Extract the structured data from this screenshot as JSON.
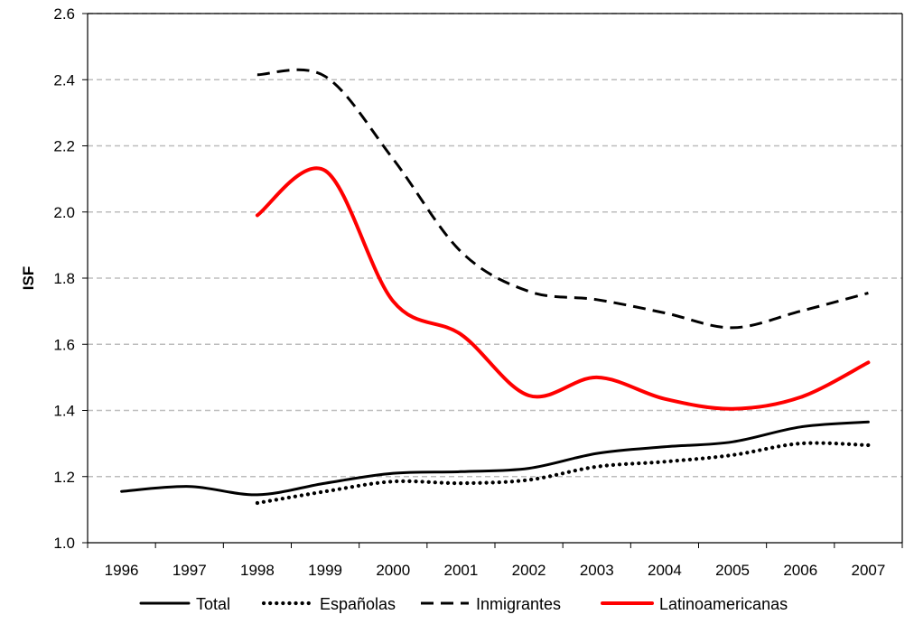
{
  "chart_data": {
    "type": "line",
    "title": "",
    "xlabel": "",
    "ylabel": "ISF",
    "categories": [
      "1996",
      "1997",
      "1998",
      "1999",
      "2000",
      "2001",
      "2002",
      "2003",
      "2004",
      "2005",
      "2006",
      "2007"
    ],
    "ylim": [
      1.0,
      2.6
    ],
    "yticks": [
      "1.0",
      "1.2",
      "1.4",
      "1.6",
      "1.8",
      "2.0",
      "2.2",
      "2.4",
      "2.6"
    ],
    "grid": "horizontal dashed",
    "legend_position": "bottom",
    "series": [
      {
        "name": "Total",
        "style": "solid",
        "color": "#000000",
        "values": [
          1.155,
          1.17,
          1.145,
          1.18,
          1.21,
          1.215,
          1.225,
          1.27,
          1.29,
          1.305,
          1.35,
          1.365
        ]
      },
      {
        "name": "Españolas",
        "style": "dotted",
        "color": "#000000",
        "values": [
          null,
          null,
          1.12,
          1.155,
          1.185,
          1.18,
          1.19,
          1.23,
          1.245,
          1.265,
          1.3,
          1.295
        ]
      },
      {
        "name": "Inmigrantes",
        "style": "dashed",
        "color": "#000000",
        "values": [
          null,
          null,
          2.415,
          2.41,
          2.16,
          1.88,
          1.76,
          1.735,
          1.695,
          1.65,
          1.7,
          1.755
        ]
      },
      {
        "name": "Latinoamericanas",
        "style": "solid",
        "color": "#ff0000",
        "values": [
          null,
          null,
          1.99,
          2.125,
          1.73,
          1.63,
          1.445,
          1.5,
          1.435,
          1.405,
          1.44,
          1.545
        ]
      }
    ]
  }
}
